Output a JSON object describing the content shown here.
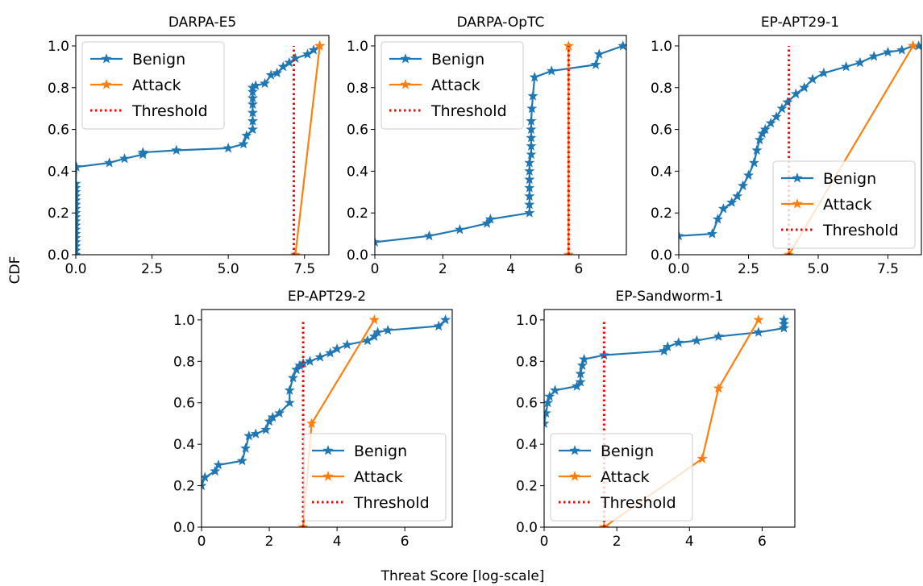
{
  "figure": {
    "ylabel": "CDF",
    "xlabel": "Threat Score [log-scale]"
  },
  "colors": {
    "benign": "#1f77b4",
    "attack": "#ff7f0e",
    "threshold": "#ff0000"
  },
  "chart_data": [
    {
      "type": "line",
      "title": "DARPA-E5",
      "xlim": [
        0,
        8.3
      ],
      "ylim": [
        0,
        1.05
      ],
      "xticks": [
        0,
        2.5,
        5.0,
        7.5
      ],
      "xtick_labels": [
        "0.0",
        "2.5",
        "5.0",
        "7.5"
      ],
      "yticks": [
        0,
        0.2,
        0.4,
        0.6,
        0.8,
        1.0
      ],
      "ytick_labels": [
        "0.0",
        "0.2",
        "0.4",
        "0.6",
        "0.8",
        "1.0"
      ],
      "legend": "top-left",
      "threshold": 7.15,
      "series": [
        {
          "name": "Benign",
          "x": [
            0,
            0,
            0,
            0,
            0,
            0,
            0,
            0,
            0,
            0,
            0,
            0,
            0,
            0,
            0,
            0,
            0,
            0,
            0.02,
            1.1,
            1.6,
            2.2,
            2.2,
            3.3,
            5.0,
            5.5,
            5.6,
            5.8,
            5.8,
            5.8,
            5.8,
            5.8,
            5.8,
            5.8,
            5.8,
            5.9,
            6.2,
            6.4,
            6.6,
            6.8,
            7.0,
            7.2,
            7.6,
            7.8,
            8.0
          ],
          "y": [
            0,
            0.02,
            0.04,
            0.06,
            0.08,
            0.1,
            0.12,
            0.14,
            0.16,
            0.18,
            0.2,
            0.22,
            0.24,
            0.26,
            0.28,
            0.3,
            0.32,
            0.34,
            0.42,
            0.44,
            0.46,
            0.48,
            0.49,
            0.5,
            0.51,
            0.53,
            0.57,
            0.6,
            0.64,
            0.68,
            0.72,
            0.75,
            0.78,
            0.8,
            0.8,
            0.81,
            0.82,
            0.86,
            0.87,
            0.9,
            0.92,
            0.94,
            0.96,
            0.98,
            1.0
          ]
        },
        {
          "name": "Attack",
          "x": [
            7.2,
            8.0
          ],
          "y": [
            0,
            1.0
          ]
        }
      ]
    },
    {
      "type": "line",
      "title": "DARPA-OpTC",
      "xlim": [
        0,
        7.4
      ],
      "ylim": [
        0,
        1.05
      ],
      "xticks": [
        0,
        2,
        4,
        6
      ],
      "xtick_labels": [
        "0",
        "2",
        "4",
        "6"
      ],
      "yticks": [
        0,
        0.2,
        0.4,
        0.6,
        0.8,
        1.0
      ],
      "ytick_labels": [
        "0.0",
        "0.2",
        "0.4",
        "0.6",
        "0.8",
        "1.0"
      ],
      "legend": "top-left",
      "threshold": 5.7,
      "series": [
        {
          "name": "Benign",
          "x": [
            0,
            1.6,
            2.5,
            3.3,
            3.4,
            4.55,
            4.55,
            4.55,
            4.55,
            4.55,
            4.55,
            4.55,
            4.6,
            4.6,
            4.6,
            4.6,
            4.6,
            4.62,
            4.65,
            4.7,
            5.2,
            6.5,
            6.6,
            7.3
          ],
          "y": [
            0.06,
            0.09,
            0.12,
            0.15,
            0.17,
            0.2,
            0.24,
            0.28,
            0.32,
            0.36,
            0.4,
            0.44,
            0.48,
            0.52,
            0.56,
            0.6,
            0.64,
            0.7,
            0.76,
            0.85,
            0.88,
            0.91,
            0.96,
            1.0
          ]
        },
        {
          "name": "Attack",
          "x": [
            5.7,
            5.7
          ],
          "y": [
            0,
            1.0
          ]
        }
      ]
    },
    {
      "type": "line",
      "title": "EP-APT29-1",
      "xlim": [
        0,
        8.7
      ],
      "ylim": [
        0,
        1.05
      ],
      "xticks": [
        0,
        2.5,
        5.0,
        7.5
      ],
      "xtick_labels": [
        "0.0",
        "2.5",
        "5.0",
        "7.5"
      ],
      "yticks": [
        0,
        0.2,
        0.4,
        0.6,
        0.8,
        1.0
      ],
      "ytick_labels": [
        "0.0",
        "0.2",
        "0.4",
        "0.6",
        "0.8",
        "1.0"
      ],
      "legend": "bottom-right",
      "threshold": 3.95,
      "series": [
        {
          "name": "Benign",
          "x": [
            0,
            1.2,
            1.4,
            1.6,
            1.9,
            2.1,
            2.3,
            2.5,
            2.7,
            2.8,
            2.9,
            3.0,
            3.1,
            3.3,
            3.5,
            3.7,
            3.9,
            4.2,
            4.5,
            4.8,
            5.2,
            6.0,
            6.5,
            7.0,
            7.5,
            8.0,
            8.4,
            8.6
          ],
          "y": [
            0.09,
            0.1,
            0.17,
            0.22,
            0.25,
            0.28,
            0.33,
            0.38,
            0.44,
            0.5,
            0.55,
            0.58,
            0.6,
            0.63,
            0.66,
            0.7,
            0.73,
            0.77,
            0.8,
            0.84,
            0.87,
            0.9,
            0.92,
            0.95,
            0.97,
            0.98,
            1.0,
            1.0
          ]
        },
        {
          "name": "Attack",
          "x": [
            3.95,
            8.4
          ],
          "y": [
            0,
            1.0
          ]
        }
      ]
    },
    {
      "type": "line",
      "title": "EP-APT29-2",
      "xlim": [
        0,
        7.4
      ],
      "ylim": [
        0,
        1.05
      ],
      "xticks": [
        0,
        2,
        4,
        6
      ],
      "xtick_labels": [
        "0",
        "2",
        "4",
        "6"
      ],
      "yticks": [
        0,
        0.2,
        0.4,
        0.6,
        0.8,
        1.0
      ],
      "ytick_labels": [
        "0.0",
        "0.2",
        "0.4",
        "0.6",
        "0.8",
        "1.0"
      ],
      "legend": "bottom-right",
      "threshold": 3.0,
      "series": [
        {
          "name": "Benign",
          "x": [
            0,
            0.1,
            0.4,
            0.5,
            1.2,
            1.3,
            1.4,
            1.6,
            1.9,
            2.0,
            2.1,
            2.3,
            2.6,
            2.6,
            2.7,
            2.8,
            2.9,
            3.0,
            3.2,
            3.5,
            3.8,
            4.0,
            4.3,
            4.9,
            5.1,
            5.2,
            5.5,
            7.0,
            7.2
          ],
          "y": [
            0.2,
            0.24,
            0.27,
            0.3,
            0.32,
            0.38,
            0.44,
            0.45,
            0.47,
            0.51,
            0.53,
            0.55,
            0.6,
            0.66,
            0.72,
            0.76,
            0.78,
            0.79,
            0.8,
            0.82,
            0.84,
            0.86,
            0.88,
            0.9,
            0.92,
            0.94,
            0.95,
            0.97,
            1.0
          ]
        },
        {
          "name": "Attack",
          "x": [
            3.0,
            3.25,
            5.1
          ],
          "y": [
            0,
            0.5,
            1.0
          ]
        }
      ]
    },
    {
      "type": "line",
      "title": "EP-Sandworm-1",
      "xlim": [
        0,
        6.9
      ],
      "ylim": [
        0,
        1.05
      ],
      "xticks": [
        0,
        2,
        4,
        6
      ],
      "xtick_labels": [
        "0",
        "2",
        "4",
        "6"
      ],
      "yticks": [
        0,
        0.2,
        0.4,
        0.6,
        0.8,
        1.0
      ],
      "ytick_labels": [
        "0.0",
        "0.2",
        "0.4",
        "0.6",
        "0.8",
        "1.0"
      ],
      "legend": "bottom-left",
      "threshold": 1.65,
      "series": [
        {
          "name": "Benign",
          "x": [
            0,
            0.05,
            0.1,
            0.15,
            0.3,
            0.9,
            1.0,
            1.0,
            1.05,
            1.1,
            1.65,
            3.3,
            3.4,
            3.7,
            4.2,
            4.8,
            5.9,
            6.6,
            6.6,
            6.6
          ],
          "y": [
            0.5,
            0.55,
            0.6,
            0.63,
            0.66,
            0.68,
            0.7,
            0.74,
            0.78,
            0.81,
            0.83,
            0.85,
            0.87,
            0.89,
            0.9,
            0.92,
            0.94,
            0.96,
            0.98,
            1.0
          ]
        },
        {
          "name": "Attack",
          "x": [
            1.65,
            4.35,
            4.8,
            5.9
          ],
          "y": [
            0,
            0.33,
            0.67,
            1.0
          ]
        }
      ]
    }
  ]
}
